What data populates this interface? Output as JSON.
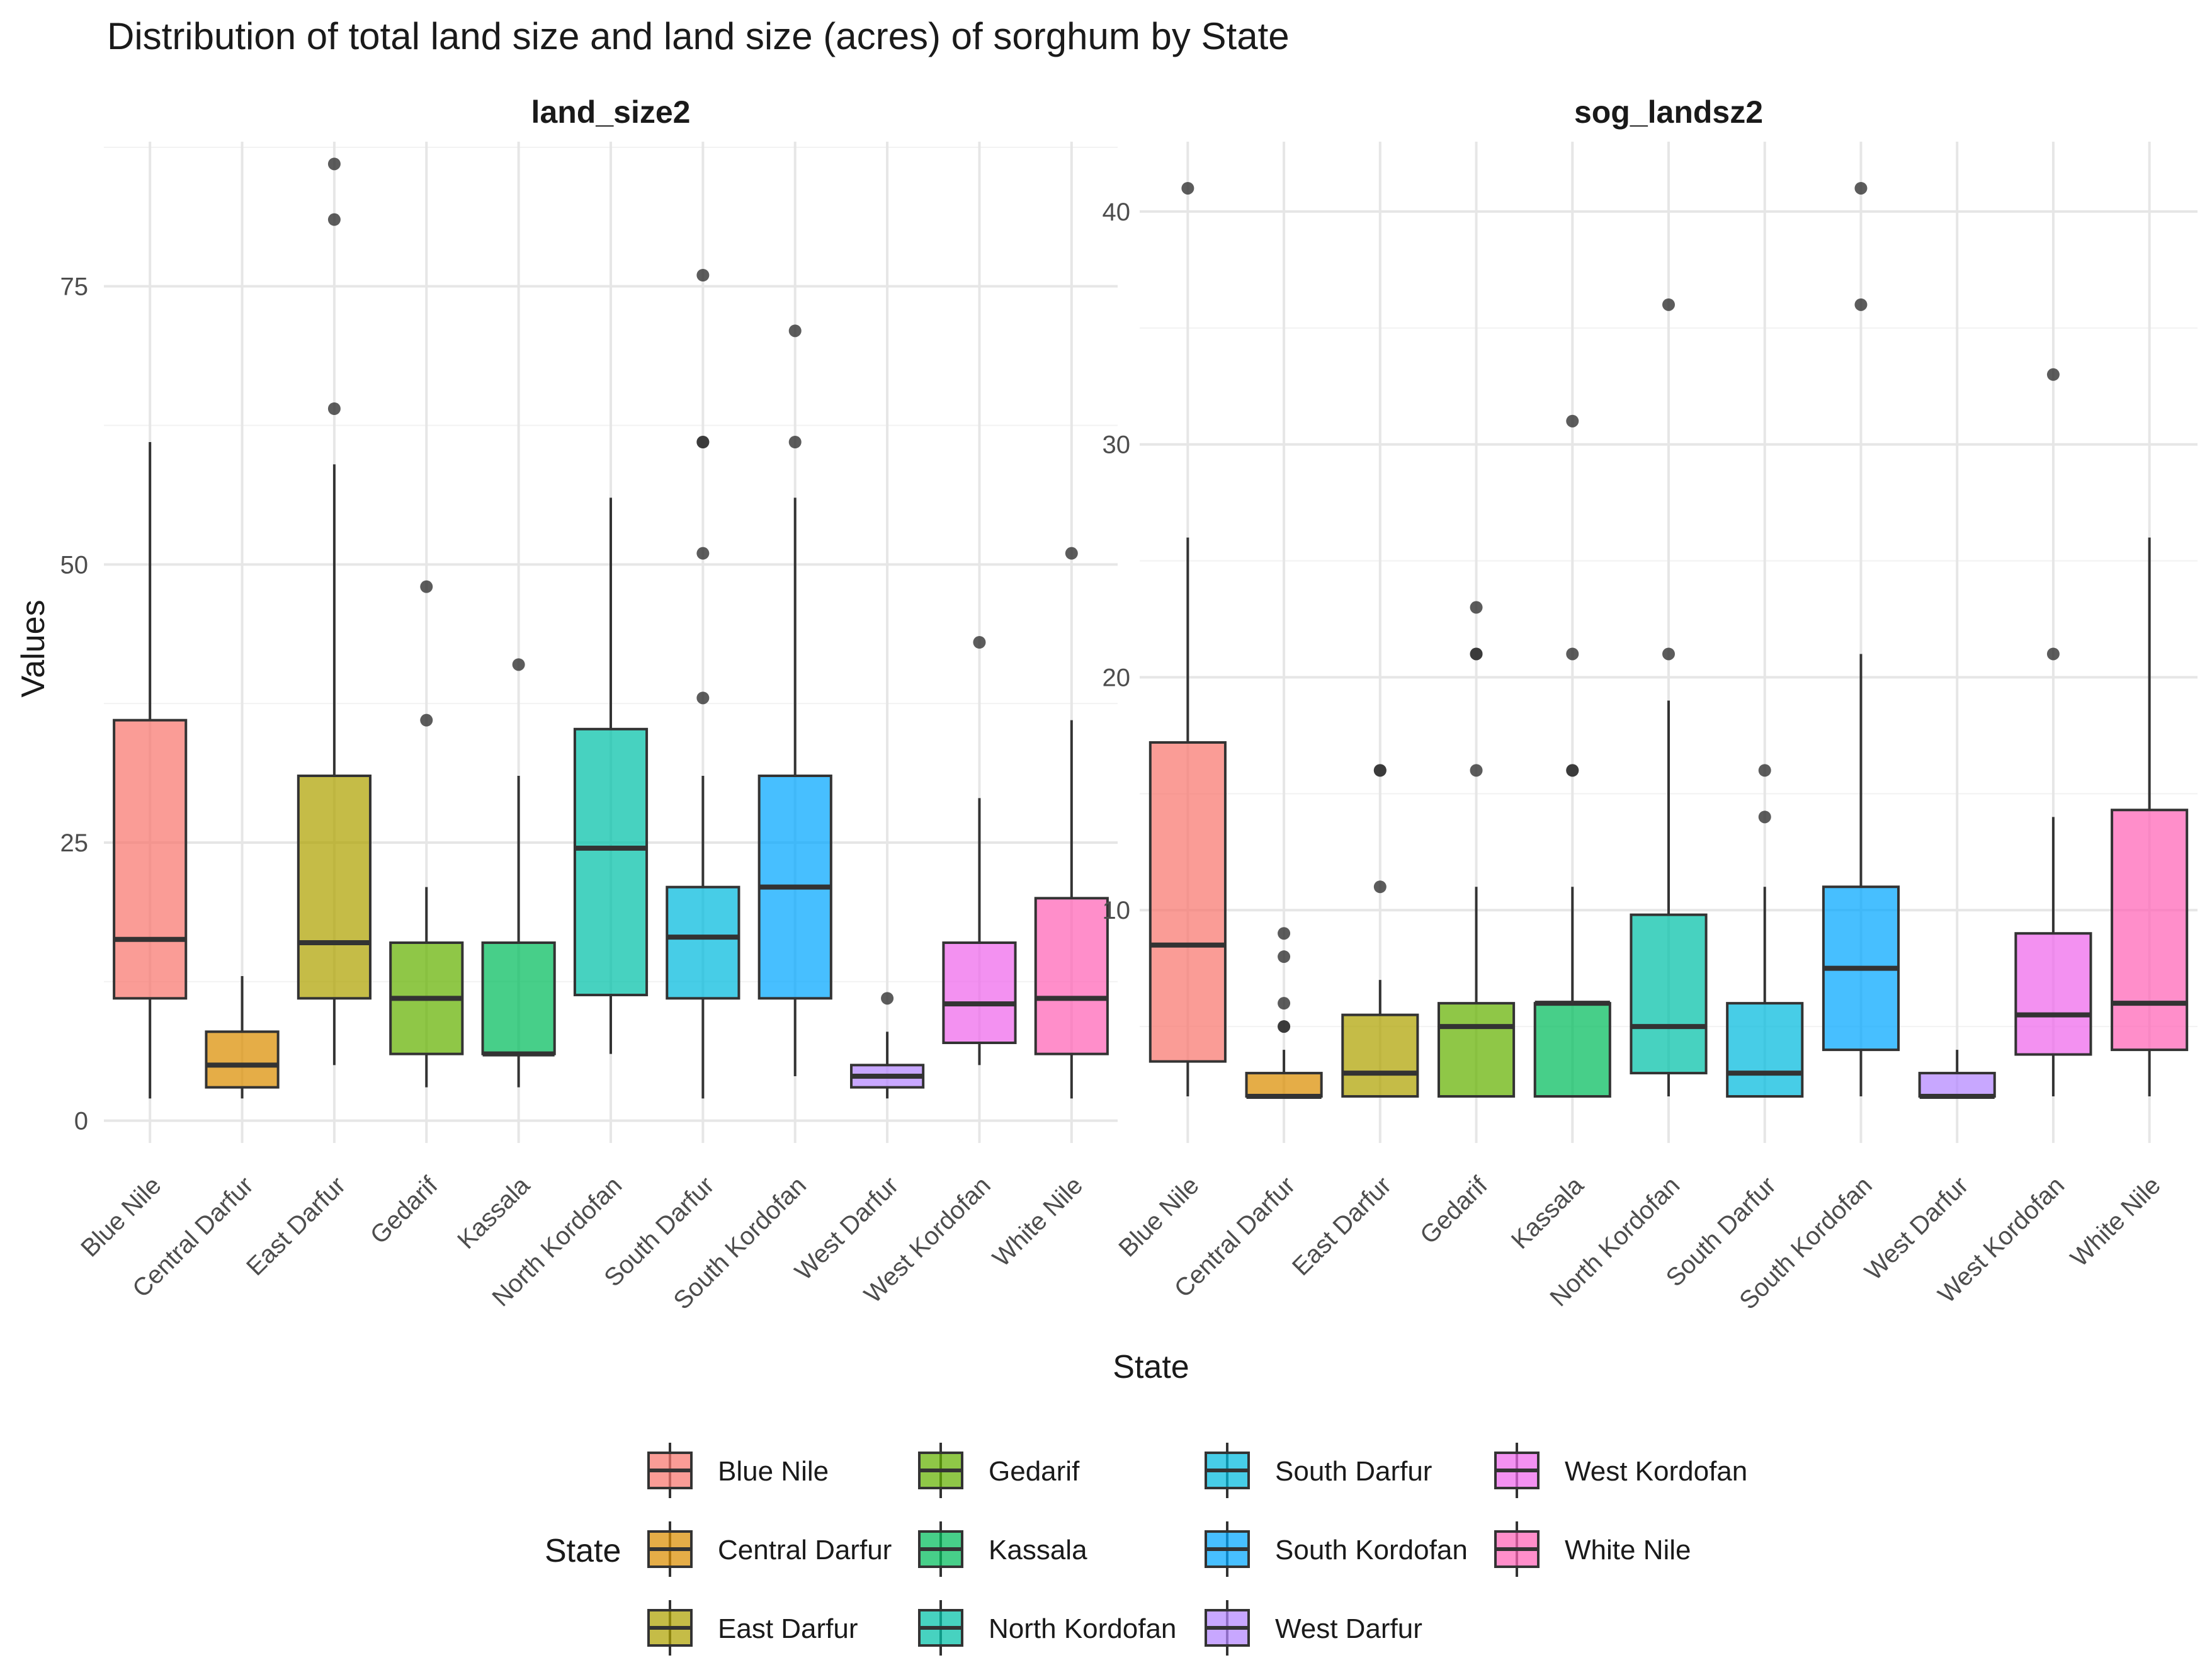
{
  "chart_data": {
    "type": "boxplot",
    "title": "Distribution of total land size and land size (acres) of sorghum by State",
    "xlabel": "State",
    "ylabel": "Values",
    "legend": {
      "title": "State",
      "position": "bottom"
    },
    "categories": [
      "Blue Nile",
      "Central Darfur",
      "East Darfur",
      "Gedarif",
      "Kassala",
      "North Kordofan",
      "South Darfur",
      "South Kordofan",
      "West Darfur",
      "West Kordofan",
      "White Nile"
    ],
    "colors": [
      "#F8766D",
      "#DB8E00",
      "#AEA200",
      "#64B200",
      "#00BD5C",
      "#00C1A7",
      "#00BADE",
      "#00A6FF",
      "#B385FF",
      "#EF67EB",
      "#FF63B6"
    ],
    "panels": [
      {
        "name": "land_size2",
        "ylim": [
          -2,
          88
        ],
        "yticks": [
          0,
          25,
          50,
          75
        ],
        "boxes": [
          {
            "state": "Blue Nile",
            "min": 2,
            "q1": 11,
            "median": 16.3,
            "q3": 36,
            "max": 61,
            "outliers": []
          },
          {
            "state": "Central Darfur",
            "min": 2,
            "q1": 3,
            "median": 5,
            "q3": 8,
            "max": 13,
            "outliers": []
          },
          {
            "state": "East Darfur",
            "min": 5,
            "q1": 11,
            "median": 16,
            "q3": 31,
            "max": 59,
            "outliers": [
              64,
              81,
              86
            ]
          },
          {
            "state": "Gedarif",
            "min": 3,
            "q1": 6,
            "median": 11,
            "q3": 16,
            "max": 21,
            "outliers": [
              36,
              48
            ]
          },
          {
            "state": "Kassala",
            "min": 3,
            "q1": 6,
            "median": 6,
            "q3": 16,
            "max": 31,
            "outliers": [
              41
            ]
          },
          {
            "state": "North Kordofan",
            "min": 6,
            "q1": 11.3,
            "median": 24.5,
            "q3": 35.2,
            "max": 56,
            "outliers": []
          },
          {
            "state": "South Darfur",
            "min": 2,
            "q1": 11,
            "median": 16.5,
            "q3": 21,
            "max": 31,
            "outliers": [
              38,
              51,
              61,
              61,
              76
            ]
          },
          {
            "state": "South Kordofan",
            "min": 4,
            "q1": 11,
            "median": 21,
            "q3": 31,
            "max": 56,
            "outliers": [
              61,
              71
            ]
          },
          {
            "state": "West Darfur",
            "min": 2,
            "q1": 3,
            "median": 4,
            "q3": 5,
            "max": 8,
            "outliers": [
              11
            ]
          },
          {
            "state": "West Kordofan",
            "min": 5,
            "q1": 7,
            "median": 10.5,
            "q3": 16,
            "max": 29,
            "outliers": [
              43
            ]
          },
          {
            "state": "White Nile",
            "min": 2,
            "q1": 6,
            "median": 11,
            "q3": 20,
            "max": 36,
            "outliers": [
              51
            ]
          }
        ]
      },
      {
        "name": "sog_landsz2",
        "ylim": [
          0,
          43
        ],
        "yticks": [
          10,
          20,
          30,
          40
        ],
        "boxes": [
          {
            "state": "Blue Nile",
            "min": 2,
            "q1": 3.5,
            "median": 8.5,
            "q3": 17.2,
            "max": 26,
            "outliers": [
              41
            ]
          },
          {
            "state": "Central Darfur",
            "min": 2,
            "q1": 2,
            "median": 2,
            "q3": 3,
            "max": 4,
            "outliers": [
              5,
              5,
              6,
              8,
              9
            ]
          },
          {
            "state": "East Darfur",
            "min": 2,
            "q1": 2,
            "median": 3,
            "q3": 5.5,
            "max": 7,
            "outliers": [
              11,
              16,
              16
            ]
          },
          {
            "state": "Gedarif",
            "min": 2,
            "q1": 2,
            "median": 5,
            "q3": 6,
            "max": 11,
            "outliers": [
              16,
              21,
              21,
              23
            ]
          },
          {
            "state": "Kassala",
            "min": 2,
            "q1": 2,
            "median": 6,
            "q3": 6,
            "max": 11,
            "outliers": [
              16,
              16,
              21,
              31
            ]
          },
          {
            "state": "North Kordofan",
            "min": 2,
            "q1": 3,
            "median": 5,
            "q3": 9.8,
            "max": 19,
            "outliers": [
              21,
              36
            ]
          },
          {
            "state": "South Darfur",
            "min": 2,
            "q1": 2,
            "median": 3,
            "q3": 6,
            "max": 11,
            "outliers": [
              14,
              16
            ]
          },
          {
            "state": "South Kordofan",
            "min": 2,
            "q1": 4,
            "median": 7.5,
            "q3": 11,
            "max": 21,
            "outliers": [
              36,
              41
            ]
          },
          {
            "state": "West Darfur",
            "min": 2,
            "q1": 2,
            "median": 2,
            "q3": 3,
            "max": 4,
            "outliers": []
          },
          {
            "state": "West Kordofan",
            "min": 2,
            "q1": 3.8,
            "median": 5.5,
            "q3": 9,
            "max": 14,
            "outliers": [
              21,
              33
            ]
          },
          {
            "state": "White Nile",
            "min": 2,
            "q1": 4,
            "median": 6,
            "q3": 14.3,
            "max": 26,
            "outliers": []
          }
        ]
      }
    ]
  }
}
